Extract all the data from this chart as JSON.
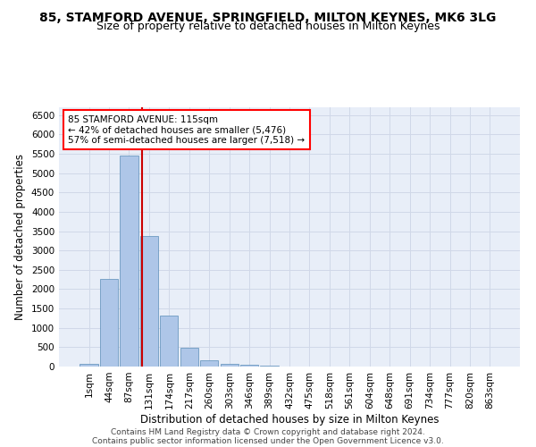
{
  "title": "85, STAMFORD AVENUE, SPRINGFIELD, MILTON KEYNES, MK6 3LG",
  "subtitle": "Size of property relative to detached houses in Milton Keynes",
  "xlabel": "Distribution of detached houses by size in Milton Keynes",
  "ylabel": "Number of detached properties",
  "footnote1": "Contains HM Land Registry data © Crown copyright and database right 2024.",
  "footnote2": "Contains public sector information licensed under the Open Government Licence v3.0.",
  "annotation_line1": "85 STAMFORD AVENUE: 115sqm",
  "annotation_line2": "← 42% of detached houses are smaller (5,476)",
  "annotation_line3": "57% of semi-detached houses are larger (7,518) →",
  "bar_color": "#aec6e8",
  "bar_edge_color": "#5b8db8",
  "vline_color": "#cc0000",
  "categories": [
    "1sqm",
    "44sqm",
    "87sqm",
    "131sqm",
    "174sqm",
    "217sqm",
    "260sqm",
    "303sqm",
    "346sqm",
    "389sqm",
    "432sqm",
    "475sqm",
    "518sqm",
    "561sqm",
    "604sqm",
    "648sqm",
    "691sqm",
    "734sqm",
    "777sqm",
    "820sqm",
    "863sqm"
  ],
  "values": [
    75,
    2275,
    5450,
    3380,
    1320,
    475,
    160,
    80,
    55,
    30,
    10,
    5,
    0,
    0,
    0,
    0,
    0,
    0,
    0,
    0,
    0
  ],
  "ylim": [
    0,
    6700
  ],
  "yticks": [
    0,
    500,
    1000,
    1500,
    2000,
    2500,
    3000,
    3500,
    4000,
    4500,
    5000,
    5500,
    6000,
    6500
  ],
  "grid_color": "#d0d8e8",
  "background_color": "#e8eef8",
  "title_fontsize": 10,
  "subtitle_fontsize": 9,
  "xlabel_fontsize": 8.5,
  "ylabel_fontsize": 8.5,
  "tick_fontsize": 7.5,
  "annotation_fontsize": 7.5,
  "footnote_fontsize": 6.5
}
